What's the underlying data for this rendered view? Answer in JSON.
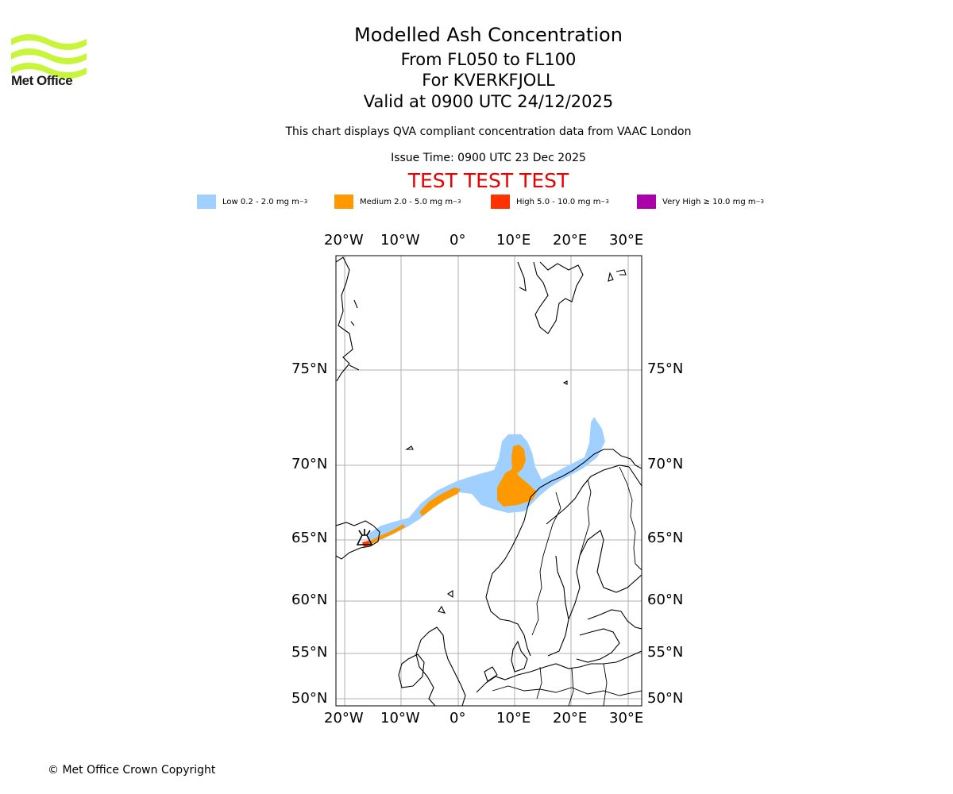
{
  "logo": {
    "brand": "Met Office",
    "color": "#c8f53a"
  },
  "header": {
    "title": "Modelled Ash Concentration",
    "levels": "From FL050 to FL100",
    "volcano": "For KVERKFJOLL",
    "valid": "Valid at 0900 UTC 24/12/2025",
    "subtitle": "This chart displays QVA compliant concentration data from VAAC London",
    "issue_time": "Issue Time: 0900 UTC 23 Dec 2025",
    "test_banner": "TEST TEST TEST"
  },
  "legend": [
    {
      "label": "Low 0.2 - 2.0 mg m",
      "color": "#a0d0ff"
    },
    {
      "label": "Medium 2.0 - 5.0 mg m",
      "color": "#ff9900"
    },
    {
      "label": "High 5.0 - 10.0 mg m",
      "color": "#ff3300"
    },
    {
      "label": "Very High  ≥  10.0 mg m",
      "color": "#aa00aa"
    }
  ],
  "legend_unit_exp": "−3",
  "map": {
    "lon_ticks": [
      "20°W",
      "10°W",
      "0°",
      "10°E",
      "20°E",
      "30°E"
    ],
    "lat_ticks": [
      "75°N",
      "70°N",
      "65°N",
      "60°N",
      "55°N",
      "50°N"
    ],
    "volcano_symbol": "volcano"
  },
  "footer": {
    "copyright": "© Met Office Crown Copyright"
  }
}
